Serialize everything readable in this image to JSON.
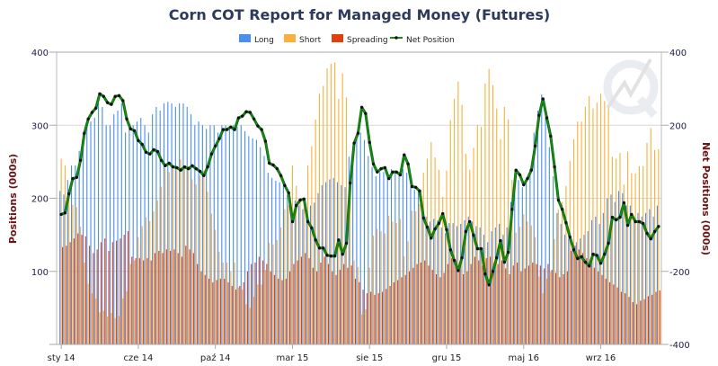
{
  "chart_data": {
    "type": "bar",
    "title": "Corn COT Report for Managed Money (Futures)",
    "ylabel": "Positions (000s)",
    "y2label": "Net Positions (000s)",
    "ylim": [
      0,
      400
    ],
    "y2lim": [
      -400,
      400
    ],
    "yticks": [
      400,
      300,
      200,
      100
    ],
    "y2ticks": [
      400,
      200,
      -200,
      -400
    ],
    "grid": true,
    "legend_position": "top-center",
    "colors": {
      "Long": "#4a8ff0",
      "Short": "#f9b03c",
      "Spreading": "#e0400e",
      "Net Position": "#178a17"
    },
    "x_tick_labels": [
      {
        "index": 0,
        "label": "sty 14"
      },
      {
        "index": 20,
        "label": "cze 14"
      },
      {
        "index": 40,
        "label": "paź 14"
      },
      {
        "index": 60,
        "label": "mar 15"
      },
      {
        "index": 80,
        "label": "sie 15"
      },
      {
        "index": 100,
        "label": "gru 15"
      },
      {
        "index": 120,
        "label": "maj 16"
      },
      {
        "index": 140,
        "label": "wrz 16"
      }
    ],
    "series": [
      {
        "name": "Long",
        "type": "bar",
        "axis": "left",
        "values": [
          210,
          205,
          225,
          245,
          245,
          265,
          290,
          300,
          305,
          310,
          330,
          325,
          300,
          300,
          315,
          320,
          330,
          290,
          300,
          300,
          305,
          310,
          300,
          290,
          315,
          325,
          320,
          330,
          332,
          330,
          325,
          330,
          330,
          325,
          315,
          300,
          305,
          300,
          295,
          300,
          300,
          290,
          300,
          300,
          295,
          300,
          298,
          300,
          292,
          285,
          282,
          280,
          270,
          258,
          235,
          228,
          224,
          222,
          220,
          205,
          181,
          197,
          190,
          185,
          181,
          190,
          194,
          207,
          218,
          222,
          226,
          228,
          222,
          218,
          215,
          257,
          266,
          284,
          290,
          280,
          258,
          243,
          230,
          236,
          236,
          230,
          240,
          238,
          236,
          240,
          235,
          215,
          212,
          212,
          181,
          175,
          168,
          172,
          170,
          160,
          152,
          166,
          166,
          162,
          165,
          170,
          175,
          168,
          162,
          160,
          150,
          140,
          155,
          160,
          165,
          150,
          160,
          195,
          230,
          225,
          215,
          222,
          240,
          290,
          320,
          342,
          310,
          270,
          230,
          180,
          165,
          150,
          145,
          140,
          140,
          145,
          150,
          155,
          170,
          175,
          165,
          180,
          200,
          205,
          195,
          210,
          207,
          190,
          190,
          170,
          180,
          175,
          180,
          185,
          175,
          190
        ]
      },
      {
        "name": "Short",
        "type": "bar",
        "axis": "left",
        "values": [
          254,
          245,
          213,
          191,
          188,
          161,
          112,
          83,
          70,
          63,
          44,
          46,
          38,
          43,
          36,
          39,
          63,
          73,
          110,
          115,
          147,
          162,
          174,
          169,
          182,
          197,
          216,
          241,
          236,
          244,
          241,
          253,
          244,
          244,
          226,
          219,
          231,
          238,
          209,
          179,
          157,
          127,
          112,
          112,
          100,
          112,
          78,
          75,
          55,
          50,
          65,
          82,
          82,
          102,
          139,
          137,
          143,
          160,
          185,
          190,
          245,
          217,
          195,
          187,
          245,
          271,
          308,
          343,
          354,
          378,
          384,
          386,
          336,
          371,
          338,
          215,
          115,
          106,
          41,
          48,
          105,
          149,
          158,
          155,
          152,
          176,
          168,
          166,
          172,
          121,
          141,
          183,
          182,
          192,
          235,
          254,
          277,
          256,
          239,
          202,
          238,
          307,
          336,
          360,
          328,
          261,
          239,
          269,
          300,
          298,
          357,
          377,
          355,
          323,
          281,
          325,
          308,
          225,
          153,
          161,
          178,
          168,
          163,
          147,
          93,
          70,
          90,
          100,
          144,
          185,
          195,
          217,
          251,
          281,
          305,
          305,
          325,
          340,
          323,
          331,
          343,
          333,
          323,
          257,
          254,
          262,
          219,
          264,
          234,
          234,
          244,
          244,
          276,
          296,
          266,
          267
        ]
      },
      {
        "name": "Spreading",
        "type": "bar",
        "axis": "left",
        "values": [
          133,
          135,
          140,
          145,
          152,
          150,
          148,
          135,
          125,
          130,
          140,
          145,
          128,
          140,
          142,
          145,
          150,
          155,
          120,
          118,
          118,
          115,
          118,
          115,
          125,
          128,
          125,
          130,
          128,
          130,
          125,
          120,
          135,
          130,
          125,
          110,
          100,
          95,
          90,
          85,
          88,
          90,
          90,
          85,
          80,
          75,
          80,
          85,
          100,
          110,
          112,
          120,
          115,
          110,
          100,
          95,
          90,
          88,
          90,
          100,
          110,
          115,
          120,
          125,
          118,
          105,
          100,
          112,
          120,
          110,
          100,
          95,
          102,
          110,
          105,
          108,
          90,
          85,
          75,
          70,
          72,
          68,
          70,
          72,
          76,
          80,
          85,
          88,
          92,
          95,
          100,
          105,
          110,
          112,
          115,
          108,
          102,
          96,
          92,
          98,
          110,
          118,
          115,
          105,
          96,
          100,
          110,
          120,
          115,
          108,
          118,
          120,
          112,
          110,
          115,
          104,
          96,
          108,
          112,
          100,
          104,
          108,
          112,
          110,
          108,
          104,
          110,
          102,
          98,
          92,
          96,
          100,
          128,
          135,
          130,
          125,
          118,
          110,
          105,
          100,
          95,
          90,
          85,
          82,
          78,
          72,
          70,
          65,
          58,
          55,
          60,
          62,
          66,
          68,
          72,
          74
        ]
      },
      {
        "name": "Net Position",
        "type": "line",
        "axis": "right",
        "values": [
          -44,
          -40,
          12,
          54,
          57,
          104,
          178,
          217,
          235,
          247,
          286,
          279,
          262,
          257,
          279,
          281,
          267,
          217,
          190,
          185,
          158,
          148,
          126,
          121,
          133,
          128,
          104,
          89,
          96,
          86,
          84,
          77,
          86,
          81,
          89,
          81,
          74,
          62,
          86,
          121,
          143,
          163,
          188,
          188,
          195,
          188,
          220,
          225,
          237,
          235,
          217,
          198,
          188,
          156,
          96,
          91,
          81,
          62,
          35,
          15,
          -64,
          -20,
          -5,
          -2,
          -64,
          -81,
          -114,
          -136,
          -136,
          -156,
          -158,
          -158,
          -114,
          -153,
          -123,
          42,
          151,
          178,
          249,
          232,
          153,
          94,
          72,
          81,
          84,
          54,
          72,
          72,
          64,
          119,
          94,
          32,
          30,
          20,
          -54,
          -79,
          -109,
          -84,
          -69,
          -42,
          -86,
          -141,
          -170,
          -198,
          -163,
          -91,
          -64,
          -101,
          -138,
          -138,
          -207,
          -237,
          -200,
          -163,
          -116,
          -175,
          -148,
          -30,
          77,
          64,
          37,
          54,
          77,
          143,
          227,
          272,
          220,
          170,
          86,
          -5,
          -30,
          -67,
          -106,
          -141,
          -165,
          -160,
          -175,
          -185,
          -153,
          -156,
          -178,
          -153,
          -123,
          -52,
          -59,
          -52,
          -12,
          -74,
          -44,
          -64,
          -64,
          -69,
          -96,
          -111,
          -91,
          -77
        ]
      }
    ]
  }
}
